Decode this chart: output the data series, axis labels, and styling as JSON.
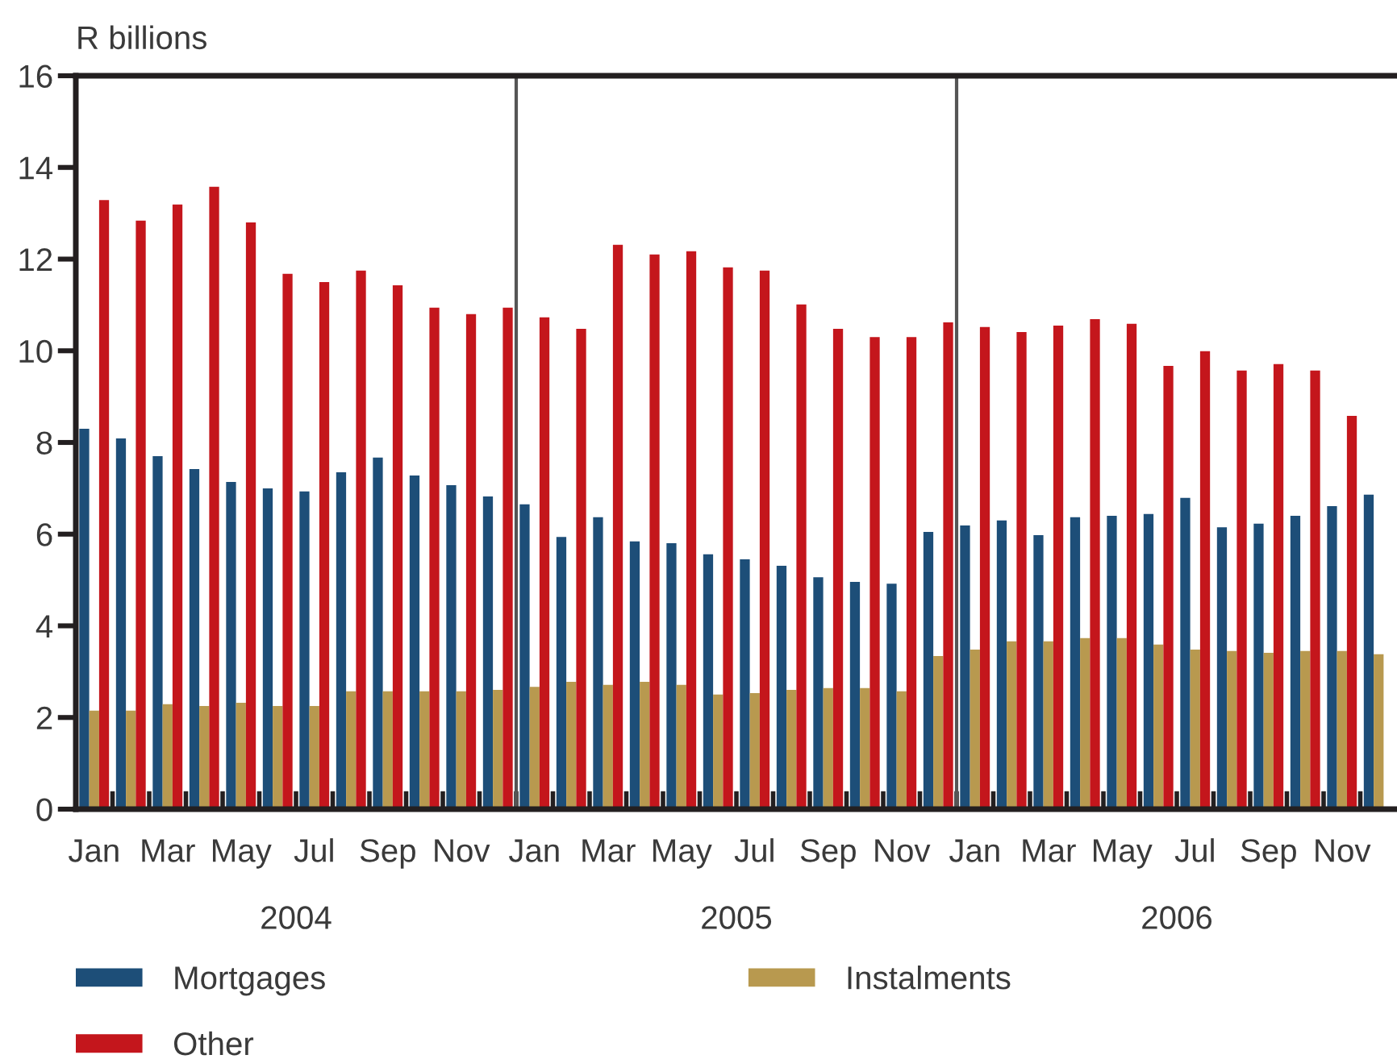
{
  "chart_data": {
    "type": "bar",
    "ylabel": "R billions",
    "categories": [
      "Jan",
      null,
      "Mar",
      null,
      "May",
      null,
      "Jul",
      null,
      "Sep",
      null,
      "Nov",
      null,
      "Jan",
      null,
      "Mar",
      null,
      "May",
      null,
      "Jul",
      null,
      "Sep",
      null,
      "Nov",
      null,
      "Jan",
      null,
      "Mar",
      null,
      "May",
      null,
      "Jul",
      null,
      "Sep",
      null,
      "Nov",
      null
    ],
    "series": [
      {
        "name": "Mortgages",
        "color": "#1d4e78",
        "values": [
          8.3,
          8.09,
          7.7,
          7.42,
          7.14,
          7.0,
          6.93,
          7.35,
          7.67,
          7.28,
          7.07,
          6.82,
          6.65,
          5.94,
          6.37,
          5.84,
          5.8,
          5.56,
          5.45,
          5.31,
          5.06,
          4.96,
          4.92,
          6.05,
          6.19,
          6.3,
          5.98,
          6.37,
          6.4,
          6.44,
          6.79,
          6.15,
          6.23,
          6.4,
          6.61,
          6.86
        ]
      },
      {
        "name": "Instalments",
        "color": "#b8994f",
        "values": [
          2.15,
          2.15,
          2.29,
          2.25,
          2.32,
          2.25,
          2.25,
          2.57,
          2.57,
          2.57,
          2.57,
          2.6,
          2.67,
          2.78,
          2.71,
          2.78,
          2.71,
          2.5,
          2.53,
          2.6,
          2.64,
          2.64,
          2.57,
          3.34,
          3.48,
          3.66,
          3.66,
          3.73,
          3.73,
          3.59,
          3.48,
          3.45,
          3.41,
          3.45,
          3.45,
          3.38
        ]
      },
      {
        "name": "Other",
        "color": "#c4161c",
        "values": [
          13.29,
          12.84,
          13.19,
          13.58,
          12.8,
          11.68,
          11.5,
          11.75,
          11.43,
          10.94,
          10.8,
          10.94,
          10.73,
          10.48,
          12.31,
          12.1,
          12.17,
          11.82,
          11.75,
          11.01,
          10.48,
          10.3,
          10.3,
          10.62,
          10.52,
          10.41,
          10.55,
          10.69,
          10.59,
          9.67,
          9.99,
          9.57,
          9.71,
          9.57,
          8.58,
          null
        ]
      }
    ],
    "ylim": [
      0,
      16
    ],
    "yticks": [
      0,
      2,
      4,
      6,
      8,
      10,
      12,
      14,
      16
    ],
    "legend": "bottom",
    "annotations": [
      "2004",
      "2005",
      "2006"
    ]
  }
}
